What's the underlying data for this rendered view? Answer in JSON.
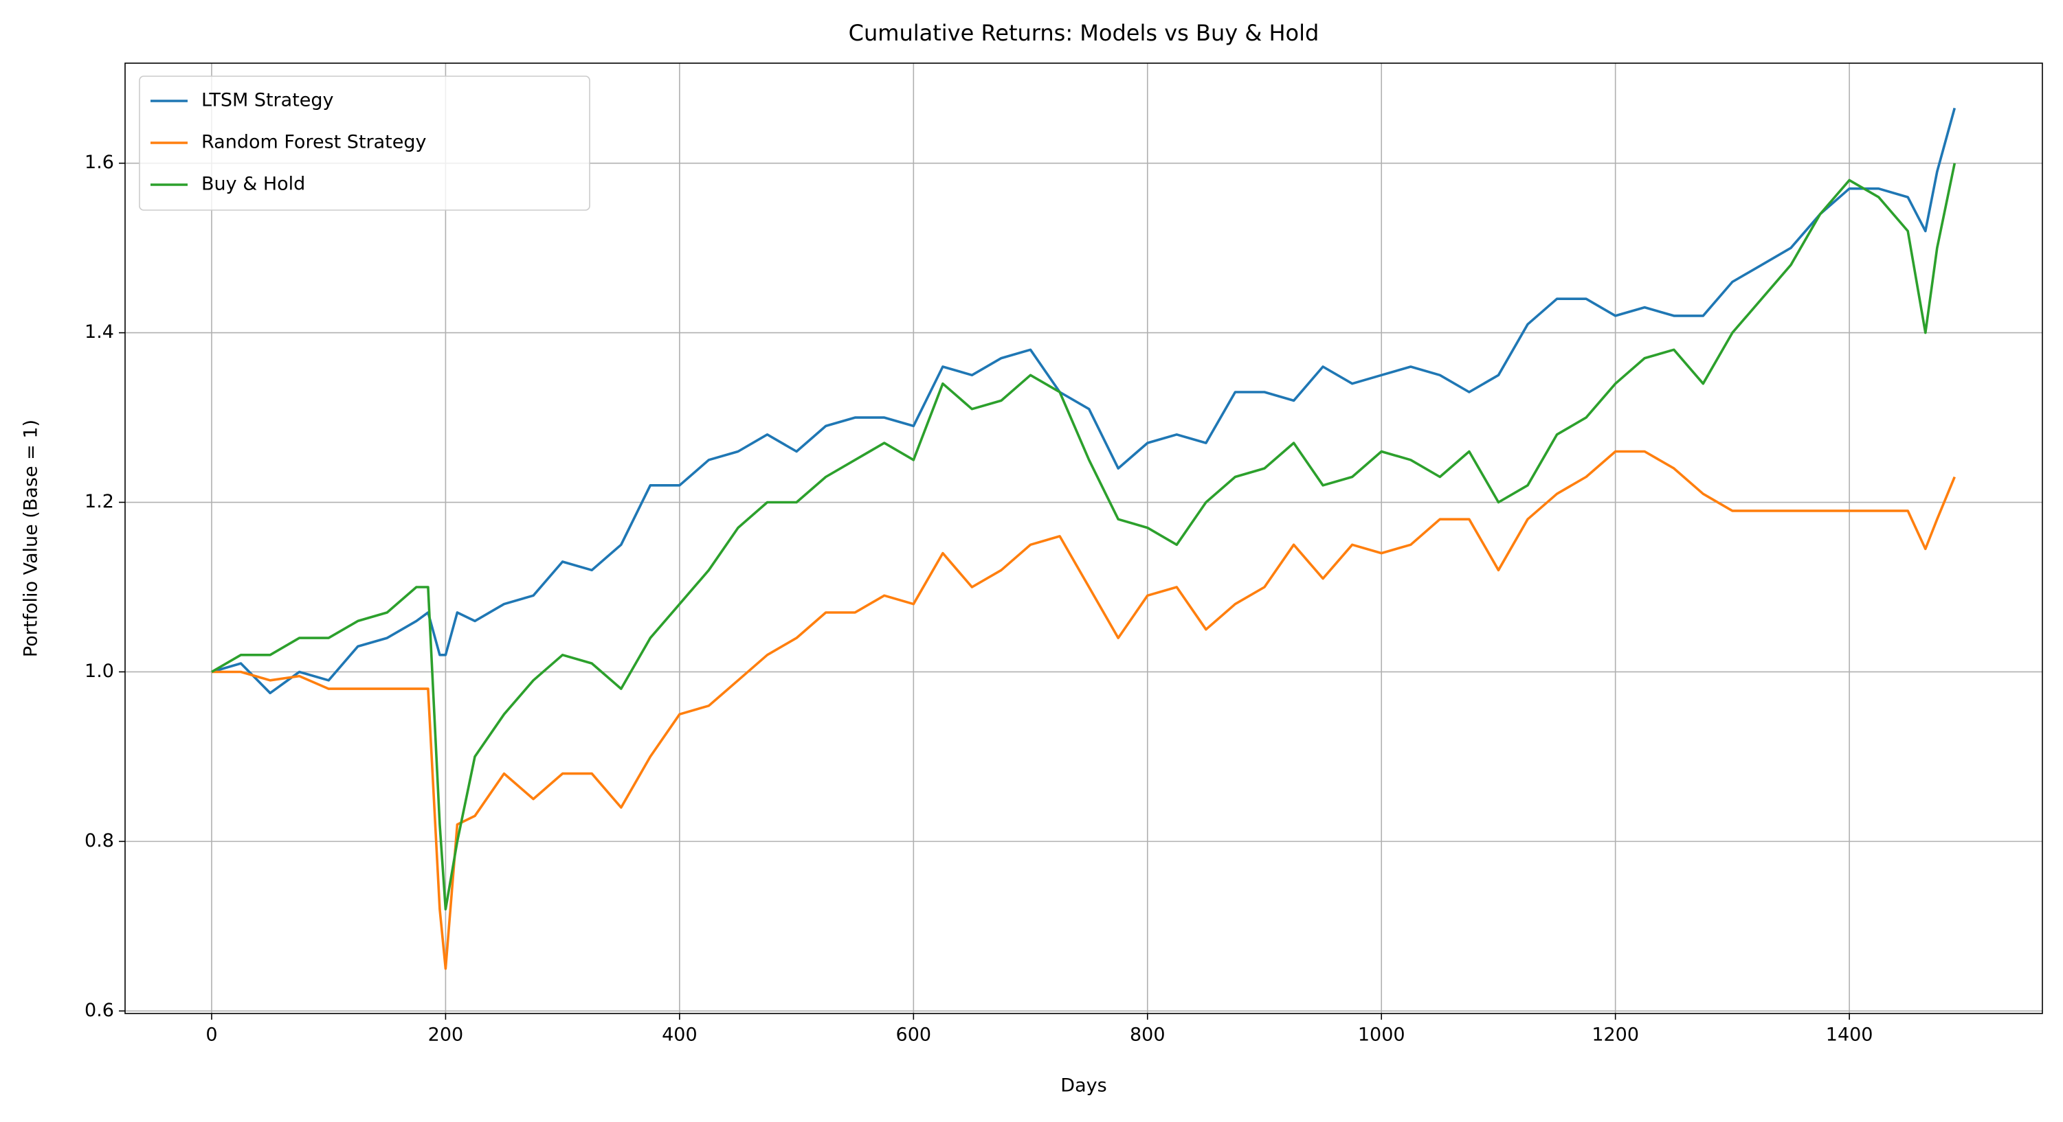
{
  "chart_data": {
    "type": "line",
    "title": "Cumulative Returns: Models vs Buy & Hold",
    "x_label": "Days",
    "y_label": "Portfolio Value (Base = 1)",
    "x": [
      0,
      25,
      50,
      75,
      100,
      125,
      150,
      175,
      185,
      195,
      200,
      210,
      225,
      250,
      275,
      300,
      325,
      350,
      375,
      400,
      425,
      450,
      475,
      500,
      525,
      550,
      575,
      600,
      625,
      650,
      675,
      700,
      725,
      750,
      775,
      800,
      825,
      850,
      875,
      900,
      925,
      950,
      975,
      1000,
      1025,
      1050,
      1075,
      1100,
      1125,
      1150,
      1175,
      1200,
      1225,
      1250,
      1275,
      1300,
      1325,
      1350,
      1375,
      1400,
      1425,
      1450,
      1465,
      1475,
      1490
    ],
    "series": [
      {
        "name": "LTSM Strategy",
        "color": "#1f77b4",
        "values": [
          1.0,
          1.01,
          0.975,
          1.0,
          0.99,
          1.03,
          1.04,
          1.06,
          1.07,
          1.02,
          1.02,
          1.07,
          1.06,
          1.08,
          1.09,
          1.13,
          1.12,
          1.15,
          1.22,
          1.22,
          1.25,
          1.26,
          1.28,
          1.26,
          1.29,
          1.3,
          1.3,
          1.29,
          1.36,
          1.35,
          1.37,
          1.38,
          1.33,
          1.31,
          1.24,
          1.27,
          1.28,
          1.27,
          1.33,
          1.33,
          1.32,
          1.36,
          1.34,
          1.35,
          1.36,
          1.35,
          1.33,
          1.35,
          1.41,
          1.44,
          1.44,
          1.42,
          1.43,
          1.42,
          1.42,
          1.46,
          1.48,
          1.5,
          1.54,
          1.57,
          1.57,
          1.56,
          1.52,
          1.59,
          1.665
        ]
      },
      {
        "name": "Random Forest Strategy",
        "color": "#ff7f0e",
        "values": [
          1.0,
          1.0,
          0.99,
          0.995,
          0.98,
          0.98,
          0.98,
          0.98,
          0.98,
          0.72,
          0.65,
          0.82,
          0.83,
          0.88,
          0.85,
          0.88,
          0.88,
          0.84,
          0.9,
          0.95,
          0.96,
          0.99,
          1.02,
          1.04,
          1.07,
          1.07,
          1.09,
          1.08,
          1.14,
          1.1,
          1.12,
          1.15,
          1.16,
          1.1,
          1.04,
          1.09,
          1.1,
          1.05,
          1.08,
          1.1,
          1.15,
          1.11,
          1.15,
          1.14,
          1.15,
          1.18,
          1.18,
          1.12,
          1.18,
          1.21,
          1.23,
          1.26,
          1.26,
          1.24,
          1.21,
          1.19,
          1.19,
          1.19,
          1.19,
          1.19,
          1.19,
          1.19,
          1.145,
          1.18,
          1.23
        ]
      },
      {
        "name": "Buy & Hold",
        "color": "#2ca02c",
        "values": [
          1.0,
          1.02,
          1.02,
          1.04,
          1.04,
          1.06,
          1.07,
          1.1,
          1.1,
          0.82,
          0.72,
          0.8,
          0.9,
          0.95,
          0.99,
          1.02,
          1.01,
          0.98,
          1.04,
          1.08,
          1.12,
          1.17,
          1.2,
          1.2,
          1.23,
          1.25,
          1.27,
          1.25,
          1.34,
          1.31,
          1.32,
          1.35,
          1.33,
          1.25,
          1.18,
          1.17,
          1.15,
          1.2,
          1.23,
          1.24,
          1.27,
          1.22,
          1.23,
          1.26,
          1.25,
          1.23,
          1.26,
          1.2,
          1.22,
          1.28,
          1.3,
          1.34,
          1.37,
          1.38,
          1.34,
          1.4,
          1.44,
          1.48,
          1.54,
          1.58,
          1.56,
          1.52,
          1.4,
          1.5,
          1.6
        ]
      }
    ],
    "xlim": [
      -74,
      1565
    ],
    "xticks": [
      0,
      200,
      400,
      600,
      800,
      1000,
      1200,
      1400
    ],
    "ylim": [
      0.597,
      1.718
    ],
    "yticks": [
      0.6,
      0.8,
      {
        "value": 1,
        "label": "1.0"
      },
      1.2,
      1.4,
      1.6
    ],
    "grid": true,
    "legend": "upper left"
  }
}
